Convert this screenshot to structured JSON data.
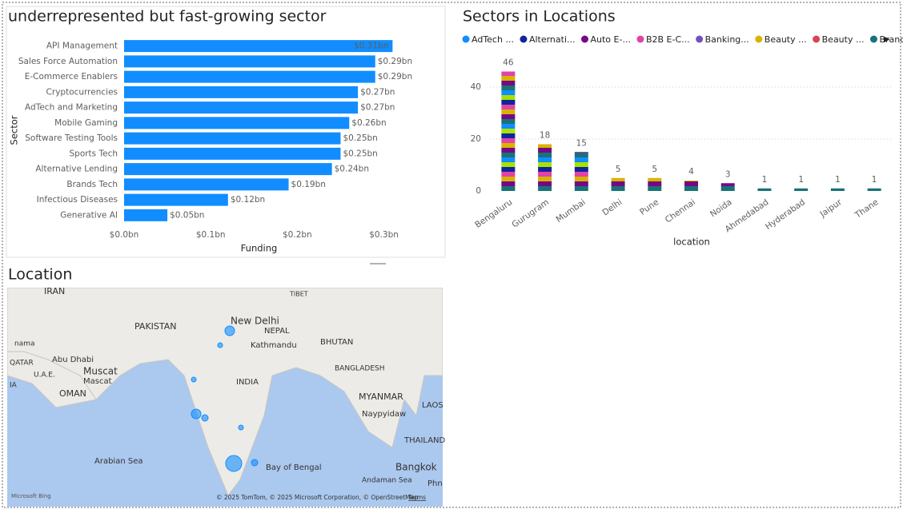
{
  "chart_data": [
    {
      "type": "hbar",
      "title": "underrepresented but fast-growing sector",
      "y_label": "Sector",
      "x_label": "Funding",
      "color": "#118dff",
      "categories": [
        "API Management",
        "Sales Force Automation",
        "E-Commerce Enablers",
        "Cryptocurrencies",
        "AdTech and Marketing",
        "Mobile Gaming",
        "Software Testing Tools",
        "Sports Tech",
        "Alternative Lending",
        "Brands Tech",
        "Infectious Diseases",
        "Generative AI"
      ],
      "values": [
        0.31,
        0.29,
        0.29,
        0.27,
        0.27,
        0.26,
        0.25,
        0.25,
        0.24,
        0.19,
        0.12,
        0.05
      ],
      "value_labels": [
        "$0.31bn",
        "$0.29bn",
        "$0.29bn",
        "$0.27bn",
        "$0.27bn",
        "$0.26bn",
        "$0.25bn",
        "$0.25bn",
        "$0.24bn",
        "$0.19bn",
        "$0.12bn",
        "$0.05bn"
      ],
      "xlim": [
        0,
        0.33
      ],
      "xticks": [
        {
          "value": 0,
          "label": "$0.0bn"
        },
        {
          "value": 0.1,
          "label": "$0.1bn"
        },
        {
          "value": 0.2,
          "label": "$0.2bn"
        },
        {
          "value": 0.3,
          "label": "$0.3bn"
        }
      ]
    },
    {
      "type": "stacked-bar",
      "title": "Sectors in Locations",
      "x_label": "location",
      "grid": true,
      "legend": [
        {
          "name": "AdTech ...",
          "color": "#118dff"
        },
        {
          "name": "Alternati...",
          "color": "#12239e"
        },
        {
          "name": "Auto E-...",
          "color": "#750985"
        },
        {
          "name": "B2B E-C...",
          "color": "#e044a7"
        },
        {
          "name": "Banking...",
          "color": "#744ec2"
        },
        {
          "name": "Beauty ...",
          "color": "#d9b300"
        },
        {
          "name": "Beauty ...",
          "color": "#d64550"
        },
        {
          "name": "Brands ...",
          "color": "#197278"
        }
      ],
      "categories": [
        "Bengaluru",
        "Gurugram",
        "Mumbai",
        "Delhi",
        "Pune",
        "Chennai",
        "Noida",
        "Ahmedabad",
        "Hyderabad",
        "Jaipur",
        "Thane"
      ],
      "values": [
        46,
        18,
        15,
        5,
        5,
        4,
        3,
        1,
        1,
        1,
        1
      ],
      "ylim": [
        0,
        50
      ],
      "yticks": [
        0,
        20,
        40
      ]
    }
  ],
  "map": {
    "title": "Location",
    "labels": [
      "IRAN",
      "PAKISTAN",
      "New Delhi",
      "NEPAL",
      "TIBET",
      "Kathmandu",
      "BHUTAN",
      "BANGLADESH",
      "INDIA",
      "MYANMAR",
      "Naypyidaw",
      "LAOS",
      "THAILAND",
      "Bangkok",
      "Arabian Sea",
      "Bay of Bengal",
      "Andaman Sea",
      "Muscat",
      "Mascat",
      "OMAN",
      "QATAR",
      "U.A.E.",
      "Abu Dhabi",
      "nama",
      "IA",
      "Phn"
    ],
    "attribution": "Microsoft Bing",
    "copyright": "© 2025 TomTom, © 2025 Microsoft Corporation, © OpenStreetMap",
    "terms": "Terms"
  }
}
